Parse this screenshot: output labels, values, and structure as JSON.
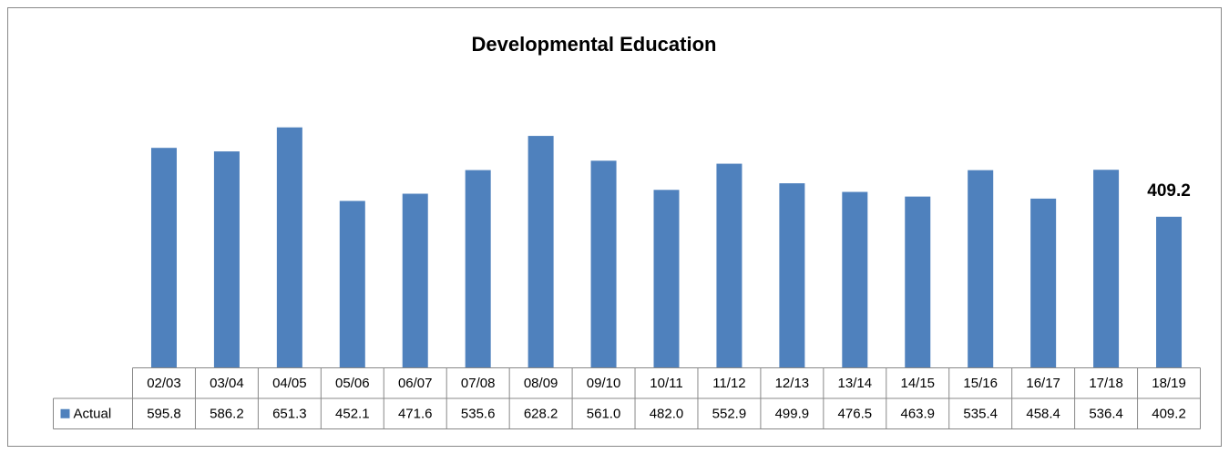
{
  "chart_data": {
    "type": "bar",
    "title": "Developmental Education",
    "categories": [
      "02/03",
      "03/04",
      "04/05",
      "05/06",
      "06/07",
      "07/08",
      "08/09",
      "09/10",
      "10/11",
      "11/12",
      "12/13",
      "13/14",
      "14/15",
      "15/16",
      "16/17",
      "17/18",
      "18/19"
    ],
    "series": [
      {
        "name": "Actual",
        "color": "#4f81bd",
        "values": [
          595.8,
          586.2,
          651.3,
          452.1,
          471.6,
          535.6,
          628.2,
          561.0,
          482.0,
          552.9,
          499.9,
          476.5,
          463.9,
          535.4,
          458.4,
          536.4,
          409.2
        ],
        "value_labels": [
          "595.8",
          "586.2",
          "651.3",
          "452.1",
          "471.6",
          "535.6",
          "628.2",
          "561.0",
          "482.0",
          "552.9",
          "499.9",
          "476.5",
          "463.9",
          "535.4",
          "458.4",
          "536.4",
          "409.2"
        ]
      }
    ],
    "ylim": [
      0,
      700
    ],
    "data_labels": "last",
    "data_table": true
  }
}
